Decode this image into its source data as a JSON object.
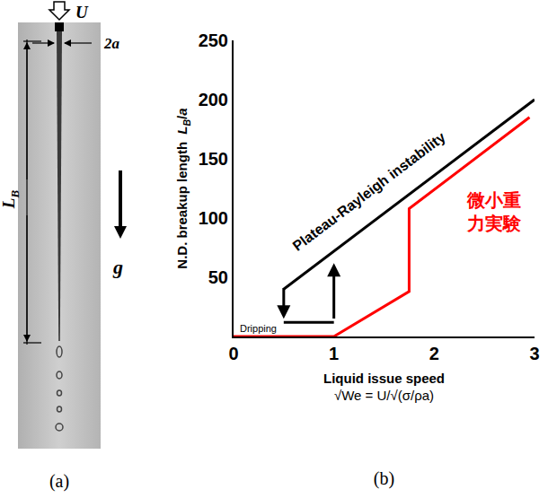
{
  "panel_a": {
    "label": "(a)",
    "flow": "U",
    "diameter": "2a",
    "length": "L",
    "length_sub": "B",
    "gravity": "g"
  },
  "chart_data": {
    "type": "line",
    "panel_label": "(b)",
    "x_label": "Liquid issue speed",
    "x_label_formula": "√We = U/√(σ/ρa)",
    "y_label": "N.D. breakup length",
    "y_symbol": "L",
    "y_symbol_sub": "B",
    "y_symbol_den": "a",
    "xlim": [
      0,
      3
    ],
    "xticks": [
      0,
      1,
      2,
      3
    ],
    "ylim": [
      0,
      250
    ],
    "yticks": [
      50,
      100,
      150,
      200,
      250
    ],
    "grid": false,
    "series": [
      {
        "name": "Plateau-Rayleigh instability",
        "color": "#000000",
        "x": [
          0.5,
          3
        ],
        "values": [
          40,
          200
        ],
        "label_x": 1.35,
        "label_y": 122
      },
      {
        "name": "Dripping",
        "color": "#000000",
        "x": [
          0.5,
          1
        ],
        "values": [
          12,
          12
        ],
        "label_x": 0.25,
        "label_y": 7
      },
      {
        "name": "微小重力実験",
        "color": "#ff0000",
        "x": [
          0,
          1,
          1.75,
          1.75,
          2.95
        ],
        "values": [
          0,
          0,
          38,
          108,
          185
        ],
        "label_x": 2.6,
        "label_y": 105
      }
    ],
    "arrows": [
      {
        "x": 0.5,
        "from": 42,
        "to": 15
      },
      {
        "x": 1,
        "from": 14,
        "to": 62
      }
    ]
  }
}
